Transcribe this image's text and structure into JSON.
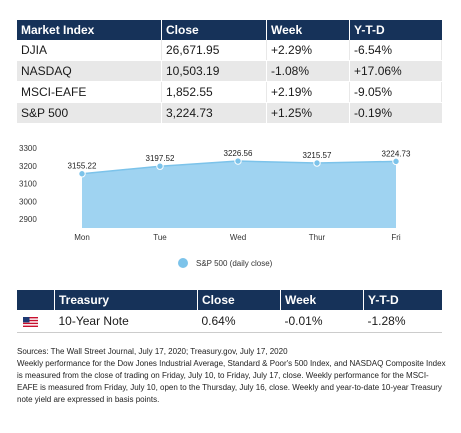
{
  "market_table": {
    "headers": [
      "Market Index",
      "Close",
      "Week",
      "Y-T-D"
    ],
    "rows": [
      [
        "DJIA",
        "26,671.95",
        "+2.29%",
        "-6.54%"
      ],
      [
        "NASDAQ",
        "10,503.19",
        "-1.08%",
        "+17.06%"
      ],
      [
        "MSCI-EAFE",
        "1,852.55",
        "+2.19%",
        "-9.05%"
      ],
      [
        "S&P 500",
        "3,224.73",
        "+1.25%",
        "-0.19%"
      ]
    ]
  },
  "chart_data": {
    "type": "area",
    "categories": [
      "Mon",
      "Tue",
      "Wed",
      "Thur",
      "Fri"
    ],
    "series": [
      {
        "name": "S&P 500 (daily close)",
        "values": [
          3155.22,
          3197.52,
          3226.56,
          3215.57,
          3224.73
        ],
        "labels": [
          "3155.22",
          "3197.52",
          "3226.56",
          "3215.57",
          "3224.73"
        ]
      }
    ],
    "yticks": [
      2900,
      3000,
      3100,
      3200,
      3300
    ],
    "ylim": [
      2850,
      3300
    ],
    "legend": "bottom",
    "colors": {
      "fill": "#9fd3f1",
      "line": "#7cc3ea",
      "point": "#7cc3ea"
    }
  },
  "legend_label": "S&P 500 (daily close)",
  "treasury_table": {
    "headers": [
      "Treasury",
      "Close",
      "Week",
      "Y-T-D"
    ],
    "rows": [
      [
        "10-Year Note",
        "0.64%",
        "-0.01%",
        "-1.28%"
      ]
    ],
    "flag_icon": "us-flag-icon"
  },
  "notes": {
    "line1": "Sources: The Wall Street Journal, July 17, 2020; Treasury.gov, July 17, 2020",
    "line2": "Weekly performance for the Dow Jones Industrial Average, Standard & Poor's 500 Index, and NASDAQ Composite Index is measured from the close of trading on Friday, July 10, to Friday, July 17, close. Weekly performance for the MSCI-EAFE is measured from Friday, July 10, open to the Thursday, July 16, close. Weekly and year-to-date 10-year Treasury note yield are expressed in basis points."
  },
  "colors": {
    "header_bg": "#163259",
    "row_alt": "#e8e8e8"
  }
}
